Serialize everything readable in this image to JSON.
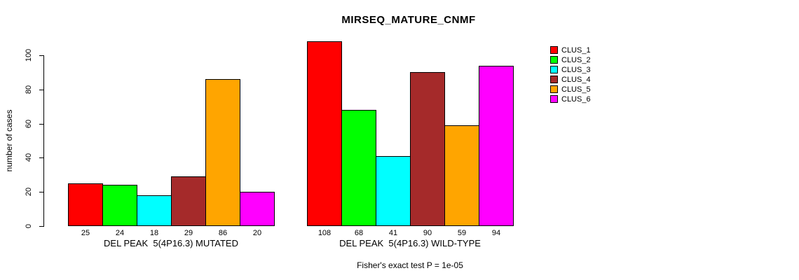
{
  "chart_data": {
    "type": "bar",
    "title": "MIRSEQ_MATURE_CNMF",
    "ylabel": "number of cases",
    "xlabel": "",
    "ylim": [
      0,
      110
    ],
    "yticks": [
      0,
      20,
      40,
      60,
      80,
      100
    ],
    "grid": false,
    "legend_position": "right",
    "bar_borders": "#000000",
    "groups": [
      "DEL PEAK  5(4P16.3) MUTATED",
      "DEL PEAK  5(4P16.3) WILD-TYPE"
    ],
    "series": [
      {
        "name": "CLUS_1",
        "color": "#FF0000",
        "values": [
          25,
          108
        ]
      },
      {
        "name": "CLUS_2",
        "color": "#00FF00",
        "values": [
          24,
          68
        ]
      },
      {
        "name": "CLUS_3",
        "color": "#00FFFF",
        "values": [
          18,
          41
        ]
      },
      {
        "name": "CLUS_4",
        "color": "#A52A2A",
        "values": [
          29,
          90
        ]
      },
      {
        "name": "CLUS_5",
        "color": "#FFA500",
        "values": [
          86,
          59
        ]
      },
      {
        "name": "CLUS_6",
        "color": "#FF00FF",
        "values": [
          20,
          94
        ]
      }
    ],
    "bar_value_labels_shown": true,
    "annotation": "Fisher's exact test P = 1e-05"
  }
}
